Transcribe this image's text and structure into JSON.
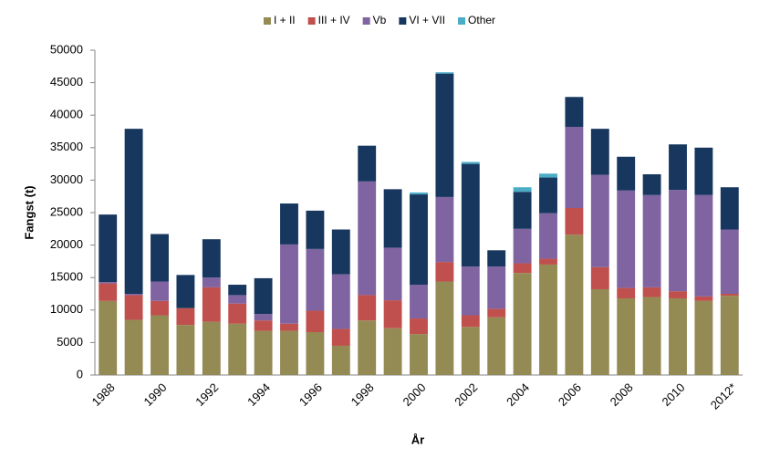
{
  "chart_data": {
    "type": "stacked_bar",
    "x_label": "År",
    "y_label": "Fangst (t)",
    "categories": [
      "1988",
      null,
      "1990",
      null,
      "1992",
      null,
      "1994",
      null,
      "1996",
      null,
      "1998",
      null,
      "2000",
      null,
      "2002",
      null,
      "2004",
      null,
      "2006",
      null,
      "2008",
      null,
      "2010",
      null,
      "2012*"
    ],
    "series": [
      {
        "name": "I + II",
        "color": "#948a54",
        "values": [
          11400,
          8500,
          9200,
          7700,
          8200,
          7900,
          6800,
          6800,
          6600,
          4500,
          8400,
          7200,
          6300,
          14400,
          7400,
          8900,
          15700,
          17000,
          21600,
          13200,
          11800,
          12000,
          11800,
          11400,
          12200
        ]
      },
      {
        "name": "III + IV",
        "color": "#c0504d",
        "values": [
          2700,
          3800,
          2200,
          2600,
          5300,
          3100,
          1600,
          1100,
          3300,
          2600,
          3900,
          4300,
          2400,
          3000,
          1800,
          1300,
          1500,
          900,
          4100,
          3400,
          1600,
          1500,
          1100,
          700,
          300
        ]
      },
      {
        "name": "Vb",
        "color": "#8064a2",
        "values": [
          200,
          200,
          3000,
          0,
          1500,
          1300,
          1000,
          12200,
          9500,
          8400,
          17500,
          8100,
          5200,
          10000,
          7500,
          6500,
          5300,
          7000,
          12500,
          14200,
          15000,
          14200,
          15600,
          15600,
          9900
        ]
      },
      {
        "name": "VI + VII",
        "color": "#17375e",
        "values": [
          10400,
          25400,
          7300,
          5100,
          5900,
          1600,
          5500,
          6300,
          5900,
          6900,
          5500,
          9000,
          13900,
          19000,
          15800,
          2500,
          5700,
          5500,
          4600,
          7100,
          5200,
          3200,
          7000,
          7300,
          6500
        ]
      },
      {
        "name": "Other",
        "color": "#4bacc6",
        "values": [
          0,
          0,
          0,
          0,
          0,
          0,
          0,
          0,
          0,
          0,
          0,
          0,
          300,
          200,
          300,
          0,
          700,
          600,
          0,
          0,
          0,
          0,
          0,
          0,
          0
        ]
      }
    ],
    "ylim": [
      0,
      50000
    ],
    "yticks": [
      0,
      5000,
      10000,
      15000,
      20000,
      25000,
      30000,
      35000,
      40000,
      45000,
      50000
    ]
  }
}
